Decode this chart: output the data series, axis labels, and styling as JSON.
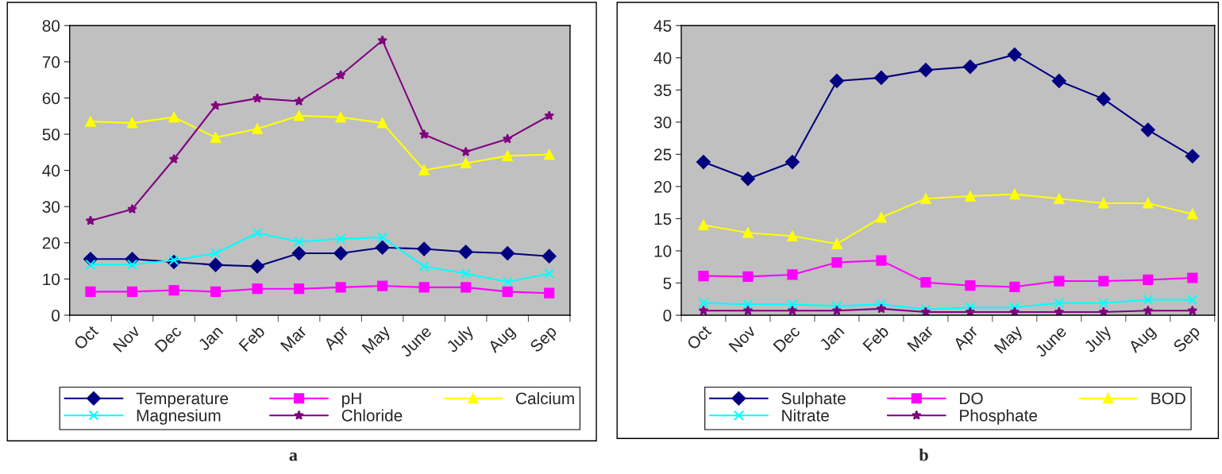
{
  "chart_data": [
    {
      "type": "line",
      "categories": [
        "Oct",
        "Nov",
        "Dec",
        "Jan",
        "Feb",
        "Mar",
        "Apr",
        "May",
        "June",
        "July",
        "Aug",
        "Sep"
      ],
      "ylim": [
        0,
        80
      ],
      "yticks": [
        0,
        10,
        20,
        30,
        40,
        50,
        60,
        70,
        80
      ],
      "grid": false,
      "legend": "bottom",
      "line_style": "solid",
      "annotations": [
        "a"
      ],
      "series": [
        {
          "name": "Temperature",
          "color": "#000080",
          "marker": "diamond",
          "values": [
            15.5,
            15.5,
            14.7,
            13.9,
            13.5,
            17.1,
            17.1,
            18.7,
            18.3,
            17.5,
            17.1,
            16.3
          ]
        },
        {
          "name": "pH",
          "color": "#ff00ff",
          "marker": "square",
          "values": [
            6.5,
            6.5,
            6.9,
            6.5,
            7.3,
            7.3,
            7.7,
            8.1,
            7.7,
            7.7,
            6.5,
            6.1
          ]
        },
        {
          "name": "Calcium",
          "color": "#ffff00",
          "marker": "triangle",
          "values": [
            53.5,
            53.1,
            54.7,
            49.1,
            51.5,
            55.1,
            54.7,
            53.1,
            40.1,
            42.0,
            44.0,
            44.4
          ]
        },
        {
          "name": "Magnesium",
          "color": "#00ffff",
          "marker": "cross",
          "values": [
            14.0,
            14.0,
            15.2,
            17.1,
            22.7,
            20.3,
            21.1,
            21.5,
            13.5,
            11.5,
            9.2,
            11.5
          ]
        },
        {
          "name": "Chloride",
          "color": "#800080",
          "marker": "star",
          "values": [
            26.1,
            29.3,
            43.1,
            57.9,
            59.9,
            59.1,
            66.3,
            75.9,
            49.9,
            45.1,
            48.7,
            55.1
          ]
        }
      ]
    },
    {
      "type": "line",
      "categories": [
        "Oct",
        "Nov",
        "Dec",
        "Jan",
        "Feb",
        "Mar",
        "Apr",
        "May",
        "June",
        "July",
        "Aug",
        "Sep"
      ],
      "ylim": [
        0,
        45
      ],
      "yticks": [
        0,
        5,
        10,
        15,
        20,
        25,
        30,
        35,
        40,
        45
      ],
      "grid": false,
      "legend": "bottom",
      "line_style": "solid",
      "annotations": [
        "b"
      ],
      "series": [
        {
          "name": "Sulphate",
          "color": "#000080",
          "marker": "diamond",
          "values": [
            23.8,
            21.2,
            23.8,
            36.4,
            36.9,
            38.1,
            38.6,
            40.5,
            36.4,
            33.6,
            28.8,
            24.7
          ]
        },
        {
          "name": "DO",
          "color": "#ff00ff",
          "marker": "square",
          "values": [
            6.1,
            6.0,
            6.3,
            8.2,
            8.5,
            5.1,
            4.6,
            4.4,
            5.3,
            5.3,
            5.5,
            5.8
          ]
        },
        {
          "name": "BOD",
          "color": "#ffff00",
          "marker": "triangle",
          "values": [
            14.0,
            12.8,
            12.3,
            11.1,
            15.2,
            18.1,
            18.5,
            18.8,
            18.1,
            17.4,
            17.4,
            15.7
          ]
        },
        {
          "name": "Nitrate",
          "color": "#00ffff",
          "marker": "cross",
          "values": [
            1.9,
            1.7,
            1.7,
            1.4,
            1.7,
            0.9,
            1.2,
            1.2,
            1.9,
            1.9,
            2.4,
            2.4
          ]
        },
        {
          "name": "Phosphate",
          "color": "#800080",
          "marker": "star",
          "values": [
            0.7,
            0.7,
            0.7,
            0.7,
            1.0,
            0.5,
            0.5,
            0.5,
            0.5,
            0.5,
            0.7,
            0.7
          ]
        }
      ]
    }
  ]
}
